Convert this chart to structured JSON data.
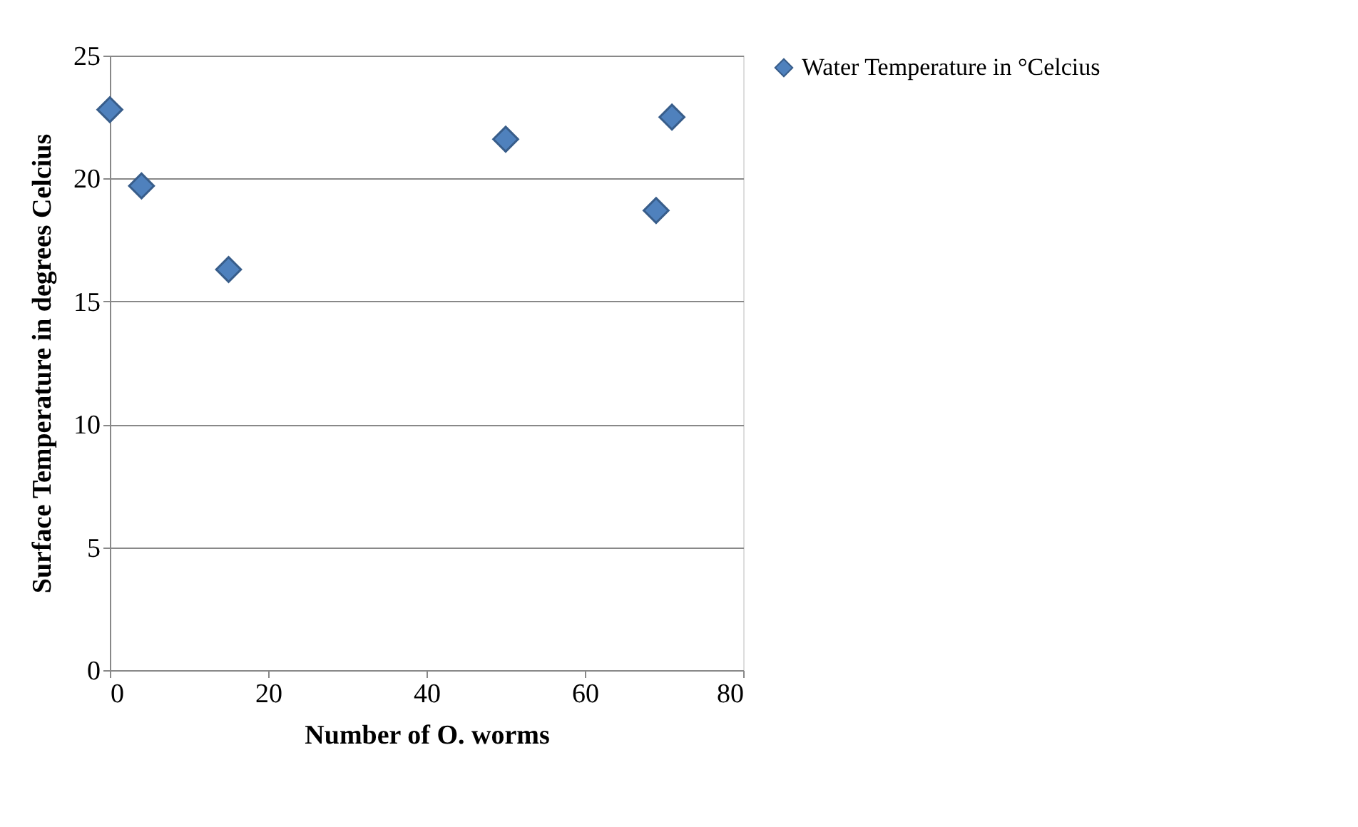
{
  "chart_data": {
    "type": "scatter",
    "xlabel": "Number of O. worms",
    "ylabel": "Surface Temperature in degrees Celcius",
    "series": [
      {
        "name": "Water Temperature in °Celcius",
        "color": "#4f81bd",
        "x": [
          0,
          4,
          15,
          50,
          69,
          71
        ],
        "values": [
          22.8,
          19.7,
          16.3,
          21.6,
          18.7,
          22.5
        ]
      }
    ],
    "xlim": [
      0,
      80
    ],
    "xticks": [
      0,
      20,
      40,
      60,
      80
    ],
    "ylim": [
      0,
      25
    ],
    "yticks": [
      0,
      5,
      10,
      15,
      20,
      25
    ],
    "grid": "y",
    "legend": "right",
    "marker": "diamond"
  }
}
